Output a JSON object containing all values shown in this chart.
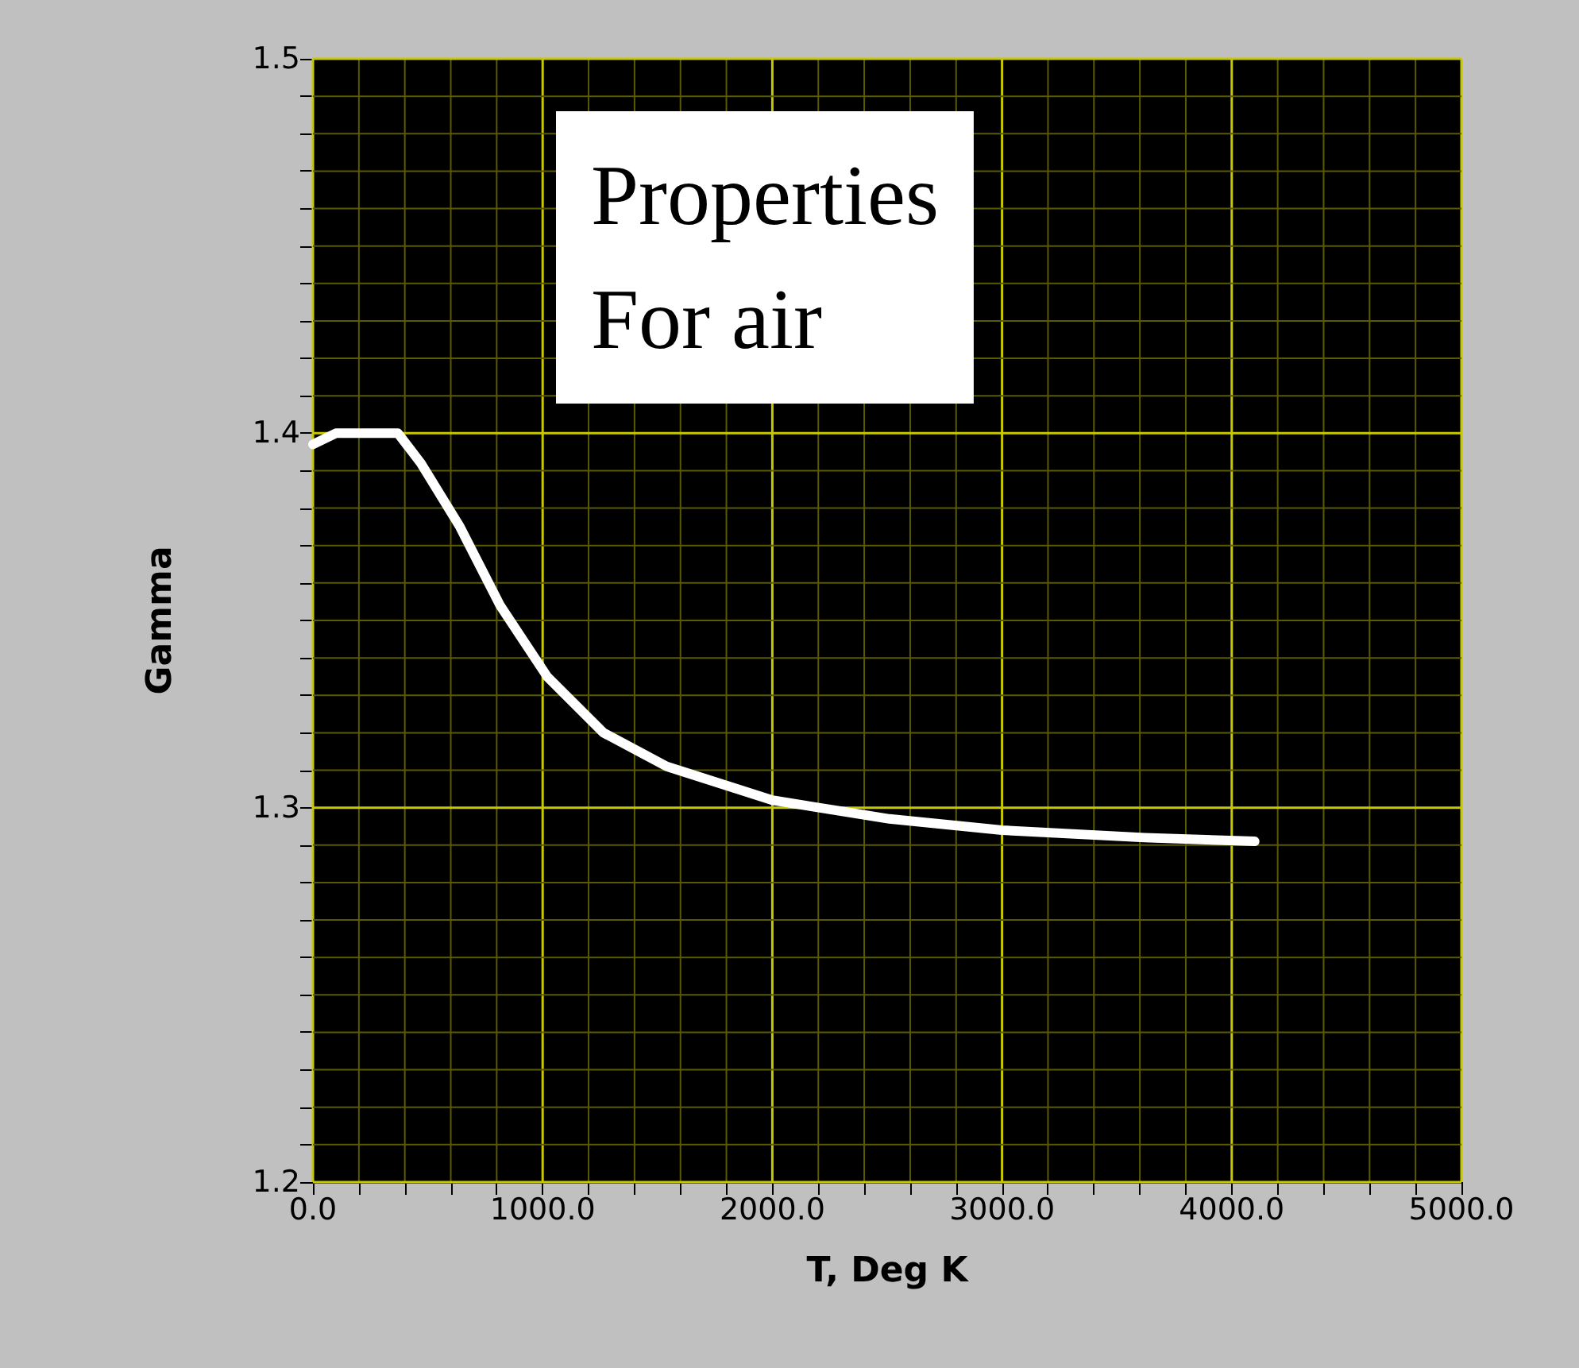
{
  "chart_data": {
    "type": "line",
    "xlabel": "T, Deg K",
    "ylabel": "Gamma",
    "annotations": [
      "Properties\nFor air"
    ],
    "x": [
      0,
      100,
      250,
      370,
      470,
      640,
      815,
      1020,
      1265,
      1540,
      2000,
      2510,
      3000,
      3620,
      4100
    ],
    "series": [
      {
        "color": "#ffffff",
        "values": [
          1.397,
          1.4,
          1.4,
          1.4,
          1.392,
          1.375,
          1.354,
          1.335,
          1.32,
          1.311,
          1.302,
          1.297,
          1.294,
          1.292,
          1.291
        ]
      }
    ],
    "xlim": [
      0,
      5000
    ],
    "ylim": [
      1.2,
      1.5
    ],
    "xticks": [
      {
        "value": 0,
        "label": "0.0"
      },
      {
        "value": 200,
        "label": null
      },
      {
        "value": 400,
        "label": null
      },
      {
        "value": 600,
        "label": null
      },
      {
        "value": 800,
        "label": null
      },
      {
        "value": 1000,
        "label": "1000.0"
      },
      {
        "value": 1200,
        "label": null
      },
      {
        "value": 1400,
        "label": null
      },
      {
        "value": 1600,
        "label": null
      },
      {
        "value": 1800,
        "label": null
      },
      {
        "value": 2000,
        "label": "2000.0"
      },
      {
        "value": 2200,
        "label": null
      },
      {
        "value": 2400,
        "label": null
      },
      {
        "value": 2600,
        "label": null
      },
      {
        "value": 2800,
        "label": null
      },
      {
        "value": 3000,
        "label": "3000.0"
      },
      {
        "value": 3200,
        "label": null
      },
      {
        "value": 3400,
        "label": null
      },
      {
        "value": 3600,
        "label": null
      },
      {
        "value": 3800,
        "label": null
      },
      {
        "value": 4000,
        "label": "4000.0"
      },
      {
        "value": 4200,
        "label": null
      },
      {
        "value": 4400,
        "label": null
      },
      {
        "value": 4600,
        "label": null
      },
      {
        "value": 4800,
        "label": null
      },
      {
        "value": 5000,
        "label": "5000.0"
      }
    ],
    "yticks": [
      1.2,
      {
        "value": 1.21,
        "label": null
      },
      {
        "value": 1.22,
        "label": null
      },
      {
        "value": 1.23,
        "label": null
      },
      {
        "value": 1.24,
        "label": null
      },
      {
        "value": 1.25,
        "label": null
      },
      {
        "value": 1.26,
        "label": null
      },
      {
        "value": 1.27,
        "label": null
      },
      {
        "value": 1.28,
        "label": null
      },
      {
        "value": 1.29,
        "label": null
      },
      1.3,
      {
        "value": 1.31,
        "label": null
      },
      {
        "value": 1.32,
        "label": null
      },
      {
        "value": 1.33,
        "label": null
      },
      {
        "value": 1.34,
        "label": null
      },
      {
        "value": 1.35,
        "label": null
      },
      {
        "value": 1.36,
        "label": null
      },
      {
        "value": 1.37,
        "label": null
      },
      {
        "value": 1.38,
        "label": null
      },
      {
        "value": 1.39,
        "label": null
      },
      1.4,
      {
        "value": 1.41,
        "label": null
      },
      {
        "value": 1.42,
        "label": null
      },
      {
        "value": 1.43,
        "label": null
      },
      {
        "value": 1.44,
        "label": null
      },
      {
        "value": 1.45,
        "label": null
      },
      {
        "value": 1.46,
        "label": null
      },
      {
        "value": 1.47,
        "label": null
      },
      {
        "value": 1.48,
        "label": null
      },
      {
        "value": 1.49,
        "label": null
      },
      1.5
    ],
    "grid": true,
    "marker": "none",
    "line_style": "solid"
  }
}
